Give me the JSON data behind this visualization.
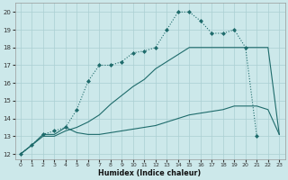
{
  "xlabel": "Humidex (Indice chaleur)",
  "xlim": [
    -0.5,
    23.5
  ],
  "ylim": [
    11.7,
    20.5
  ],
  "yticks": [
    12,
    13,
    14,
    15,
    16,
    17,
    18,
    19,
    20
  ],
  "xticks": [
    0,
    1,
    2,
    3,
    4,
    5,
    6,
    7,
    8,
    9,
    10,
    11,
    12,
    13,
    14,
    15,
    16,
    17,
    18,
    19,
    20,
    21,
    22,
    23
  ],
  "bg_color": "#cce8ea",
  "grid_color": "#aacfd2",
  "line_color": "#1e6b6b",
  "line1_x": [
    0,
    1,
    2,
    3,
    4,
    5,
    6,
    7,
    8,
    9,
    10,
    11,
    12,
    13,
    14,
    15,
    16,
    17,
    18,
    19,
    20,
    21,
    22,
    23
  ],
  "line1_y": [
    12,
    12.5,
    13.0,
    13.0,
    13.3,
    13.5,
    13.8,
    14.2,
    14.8,
    15.3,
    15.8,
    16.2,
    16.8,
    17.2,
    17.6,
    18.0,
    18.0,
    18.0,
    18.0,
    18.0,
    18.0,
    18.0,
    18.0,
    13.1
  ],
  "line2_x": [
    0,
    1,
    2,
    3,
    4,
    5,
    6,
    7,
    8,
    9,
    10,
    11,
    12,
    13,
    14,
    15,
    16,
    17,
    18,
    19,
    20,
    21
  ],
  "line2_y": [
    12,
    12.5,
    13.1,
    13.3,
    13.5,
    14.5,
    16.1,
    17.0,
    17.0,
    17.2,
    17.7,
    17.8,
    18.0,
    19.0,
    20.0,
    20.0,
    19.5,
    18.8,
    18.8,
    19.0,
    18.0,
    13.0
  ],
  "line3_x": [
    0,
    1,
    2,
    3,
    4,
    5,
    6,
    7,
    8,
    9,
    10,
    11,
    12,
    13,
    14,
    15,
    16,
    17,
    18,
    19,
    20,
    21,
    22,
    23
  ],
  "line3_y": [
    12,
    12.5,
    13.1,
    13.1,
    13.5,
    13.2,
    13.1,
    13.1,
    13.2,
    13.3,
    13.4,
    13.5,
    13.6,
    13.8,
    14.0,
    14.2,
    14.3,
    14.4,
    14.5,
    14.7,
    14.7,
    14.7,
    14.5,
    13.1
  ]
}
